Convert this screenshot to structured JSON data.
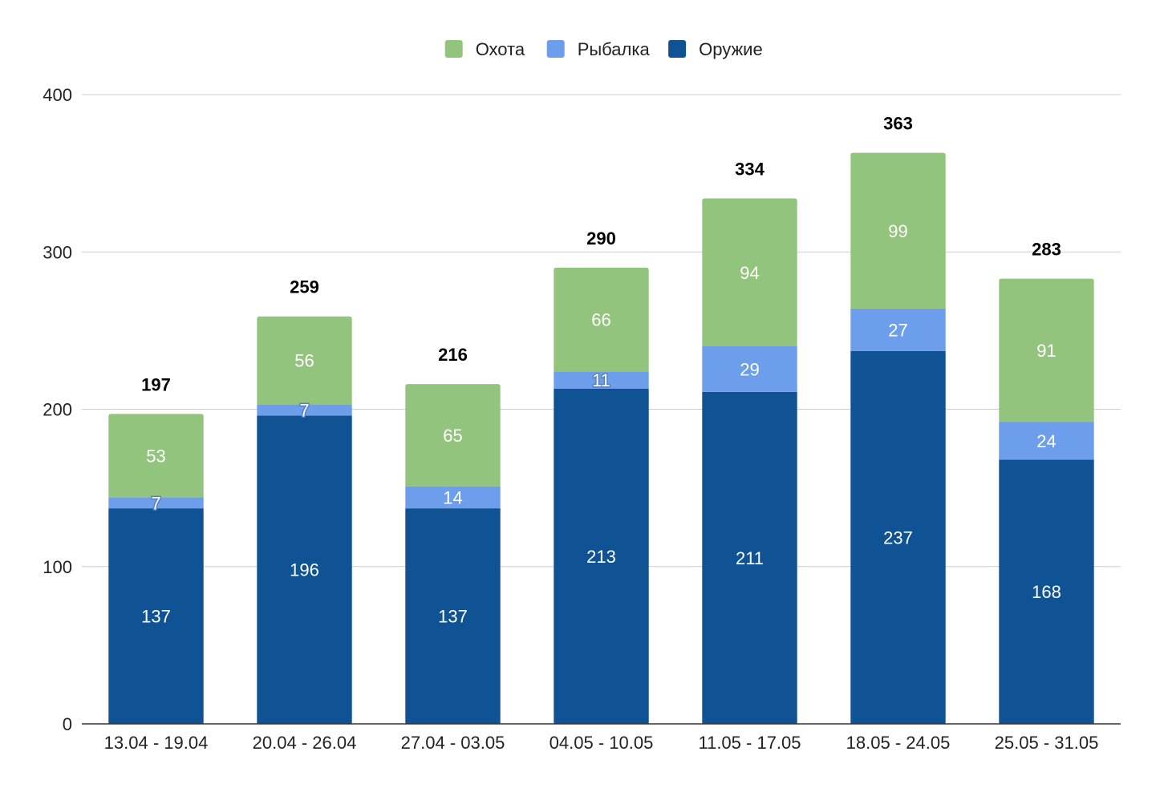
{
  "chart_data": {
    "type": "bar",
    "stacked": true,
    "categories": [
      "13.04 - 19.04",
      "20.04 - 26.04",
      "27.04 - 03.05",
      "04.05 - 10.05",
      "11.05 - 17.05",
      "18.05 - 24.05",
      "25.05 - 31.05"
    ],
    "series": [
      {
        "name": "Оружие",
        "color": "#0f5394",
        "values": [
          137,
          196,
          137,
          213,
          211,
          237,
          168
        ]
      },
      {
        "name": "Рыбалка",
        "color": "#6d9eeb",
        "values": [
          7,
          7,
          14,
          11,
          29,
          27,
          24
        ]
      },
      {
        "name": "Охота",
        "color": "#93c47d",
        "values": [
          53,
          56,
          65,
          66,
          94,
          99,
          91
        ]
      }
    ],
    "totals": [
      197,
      259,
      216,
      290,
      334,
      363,
      283
    ],
    "legend_order": [
      "Охота",
      "Рыбалка",
      "Оружие"
    ],
    "legend_position": "top",
    "ylim": [
      0,
      400
    ],
    "yticks": [
      0,
      100,
      200,
      300,
      400
    ],
    "grid": true,
    "title": "",
    "xlabel": "",
    "ylabel": ""
  }
}
